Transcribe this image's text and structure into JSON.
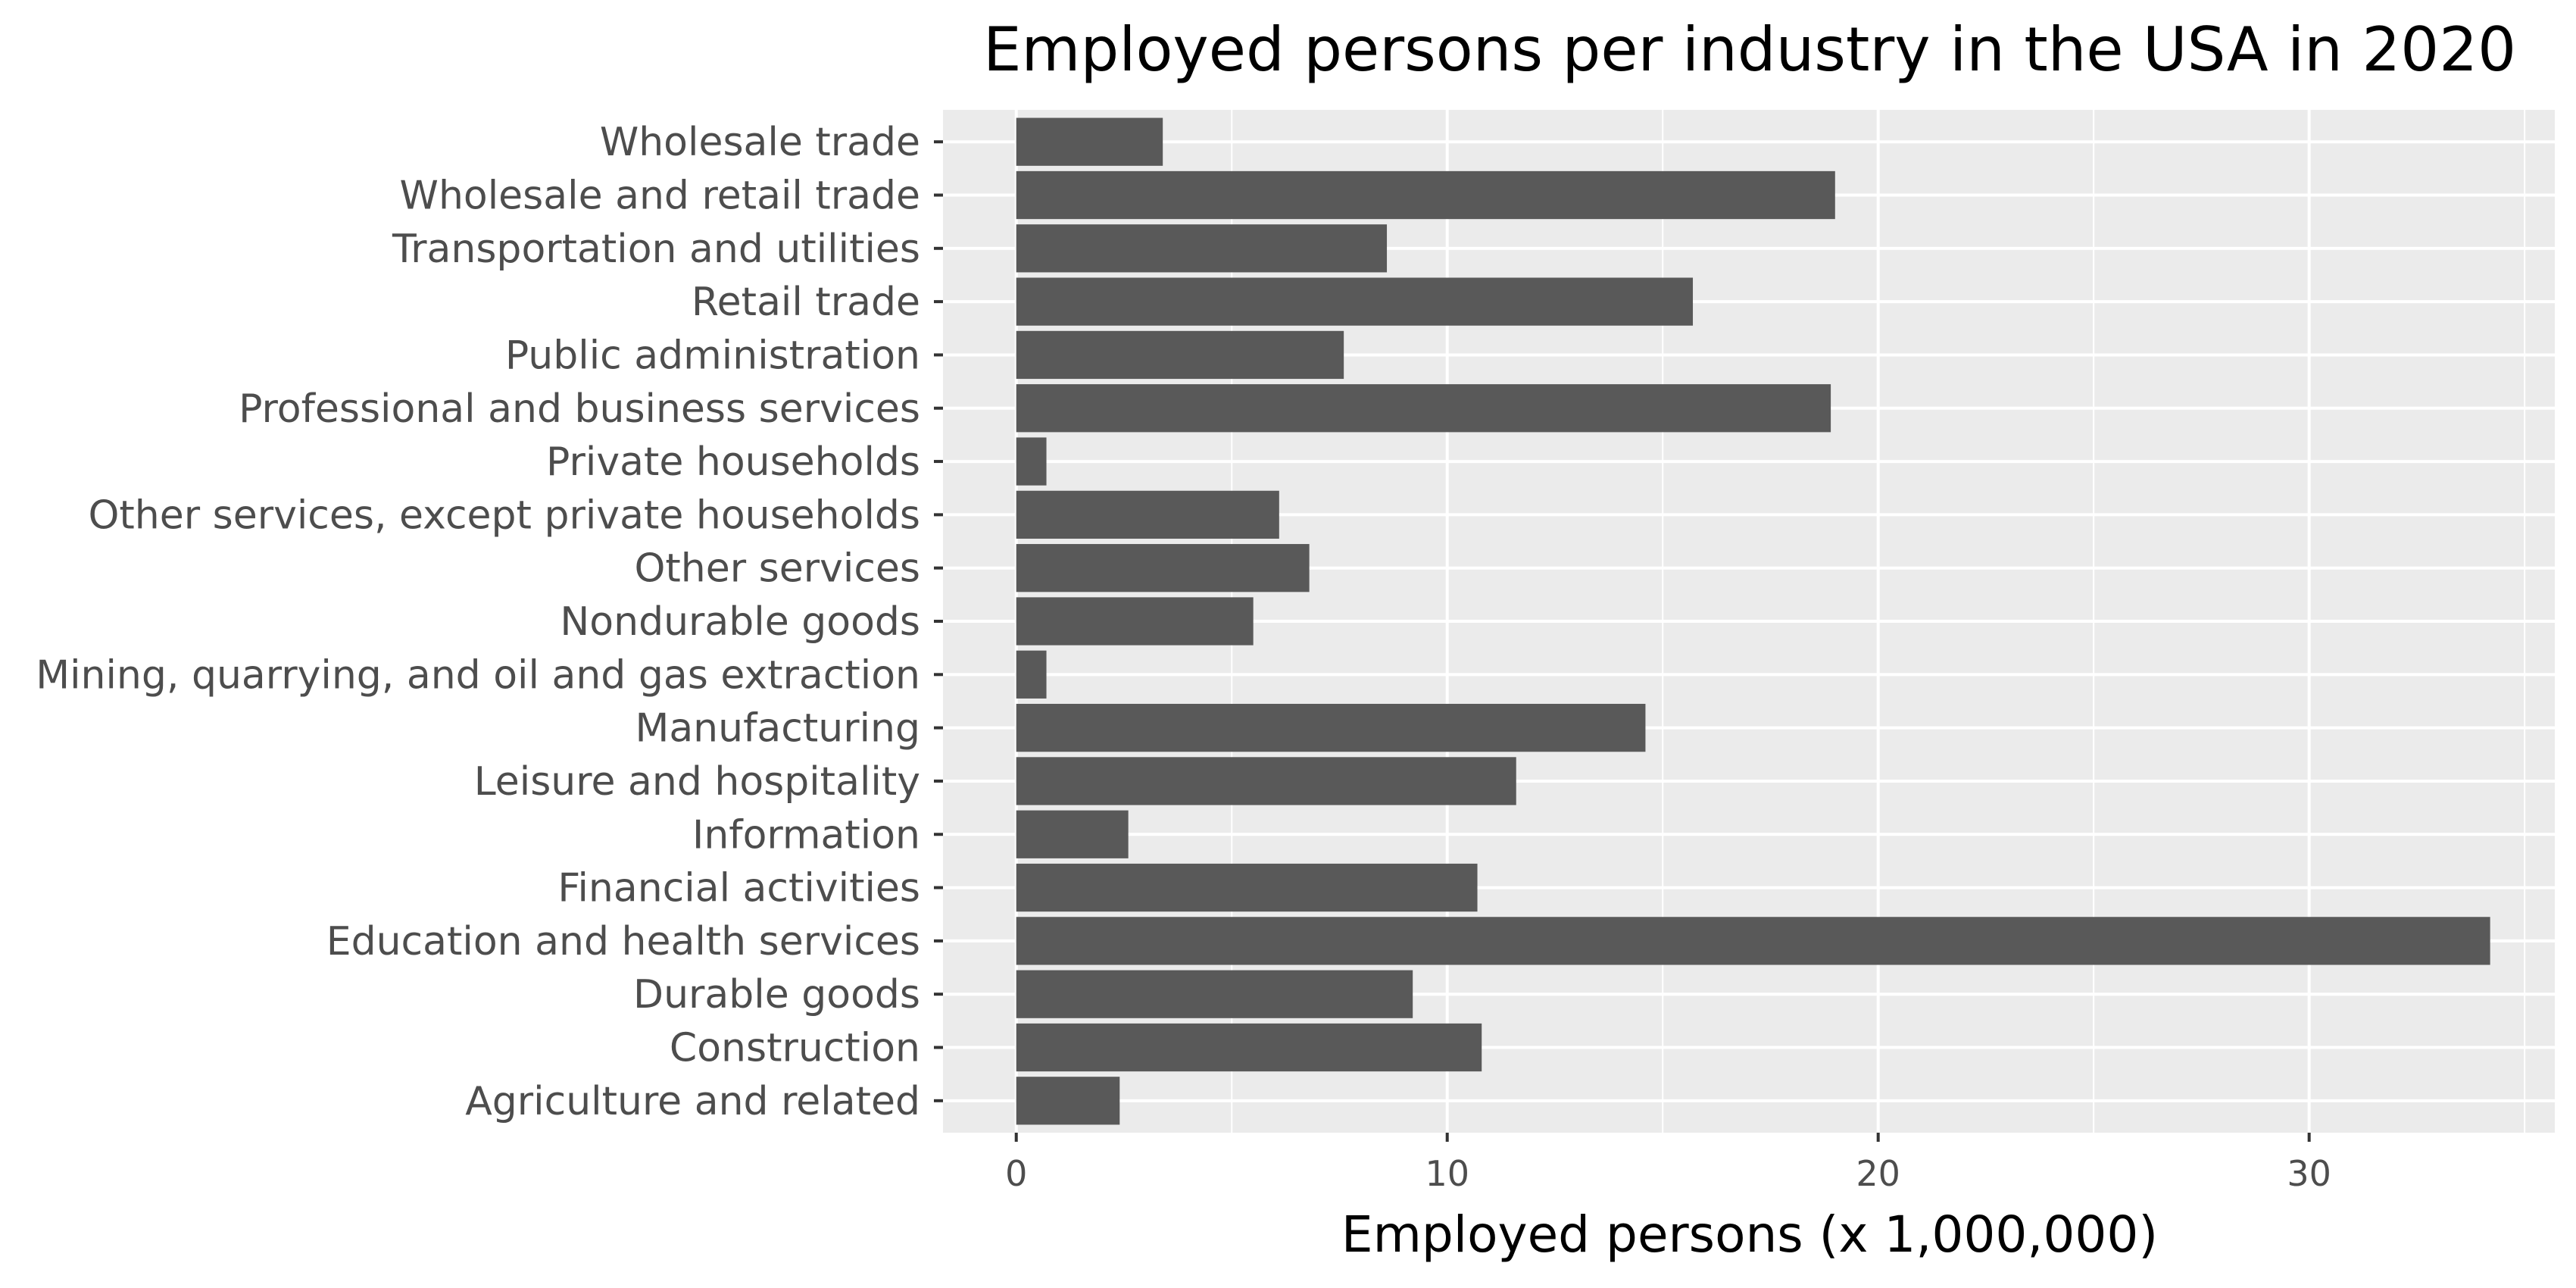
{
  "chart_data": {
    "type": "bar",
    "orientation": "horizontal",
    "title": "Employed persons per industry in the USA in 2020",
    "xlabel": "Employed persons (x 1,000,000)",
    "ylabel": "",
    "xlim": [
      -1.7,
      35.7
    ],
    "xticks": [
      0,
      10,
      20,
      30
    ],
    "xtick_labels": [
      "0",
      "10",
      "20",
      "30"
    ],
    "grid": true,
    "bar_color": "#595959",
    "panel_color": "#ebebeb",
    "categories": [
      "Wholesale trade",
      "Wholesale and retail trade",
      "Transportation and utilities",
      "Retail trade",
      "Public administration",
      "Professional and business services",
      "Private households",
      "Other services, except private households",
      "Other services",
      "Nondurable goods",
      "Mining, quarrying, and oil and gas extraction",
      "Manufacturing",
      "Leisure and hospitality",
      "Information",
      "Financial activities",
      "Education and health services",
      "Durable goods",
      "Construction",
      "Agriculture and related"
    ],
    "values": [
      3.4,
      19.0,
      8.6,
      15.7,
      7.6,
      18.9,
      0.7,
      6.1,
      6.8,
      5.5,
      0.7,
      14.6,
      11.6,
      2.6,
      10.7,
      34.2,
      9.2,
      10.8,
      2.4
    ]
  }
}
